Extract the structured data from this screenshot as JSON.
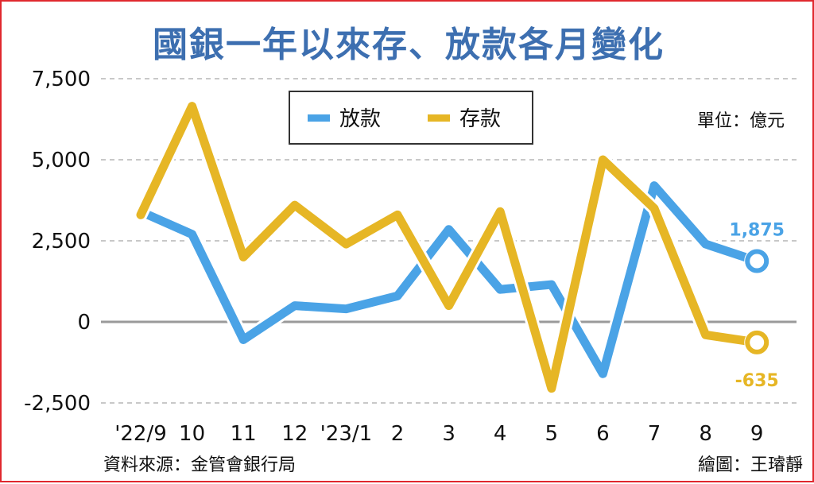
{
  "colors": {
    "loans": "#4aa3e6",
    "deposits": "#e6b625",
    "title": "#3d6fb0",
    "border": "#e0282e"
  },
  "chart_data": {
    "type": "line",
    "title": "國銀一年以來存、放款各月變化",
    "unit": "單位：億元",
    "source": "資料來源：金管會銀行局",
    "credit": "繪圖：王璿靜",
    "categories": [
      "'22/9",
      "10",
      "11",
      "12",
      "'23/1",
      "2",
      "3",
      "4",
      "5",
      "6",
      "7",
      "8",
      "9"
    ],
    "ylim": [
      -2500,
      7500
    ],
    "yticks": [
      -2500,
      0,
      2500,
      5000,
      7500
    ],
    "ytick_labels": [
      "-2,500",
      "0",
      "2,500",
      "5,000",
      "7,500"
    ],
    "grid": true,
    "legend_position": "top-center",
    "series": [
      {
        "name": "放款",
        "color": "#4aa3e6",
        "values": [
          3400,
          2700,
          -550,
          500,
          400,
          800,
          2850,
          1000,
          1150,
          -1600,
          4200,
          2400,
          1875
        ],
        "end_label": "1,875"
      },
      {
        "name": "存款",
        "color": "#e6b625",
        "values": [
          3300,
          6650,
          2000,
          3600,
          2400,
          3300,
          500,
          3400,
          -2050,
          5000,
          3500,
          -400,
          -635
        ],
        "end_label": "-635"
      }
    ]
  }
}
